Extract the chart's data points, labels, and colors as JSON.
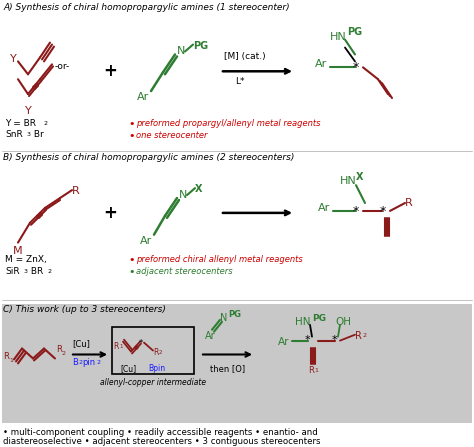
{
  "figsize": [
    4.74,
    4.47
  ],
  "dpi": 100,
  "bg_color": "#ffffff",
  "panel_c_bg": "#c8c8c8",
  "dark_red": "#8B1A1A",
  "green": "#2E7D32",
  "red_bullet": "#cc0000",
  "green_bullet": "#2E7D32",
  "black": "#000000",
  "blue": "#1a1aff",
  "section_A_title": "A) Synthesis of chiral homopropargylic amines (1 stereocenter)",
  "section_B_title": "B) Synthesis of chiral homopropargylic amines (2 stereocenters)",
  "section_C_title": "C) This work (up to 3 stereocenters)",
  "footer_line1": "• multi-component coupling • readily accessible reagents • enantio- and",
  "footer_line2": "diastereoselective • adjacent stereocenters • 3 contiguous stereocenters"
}
